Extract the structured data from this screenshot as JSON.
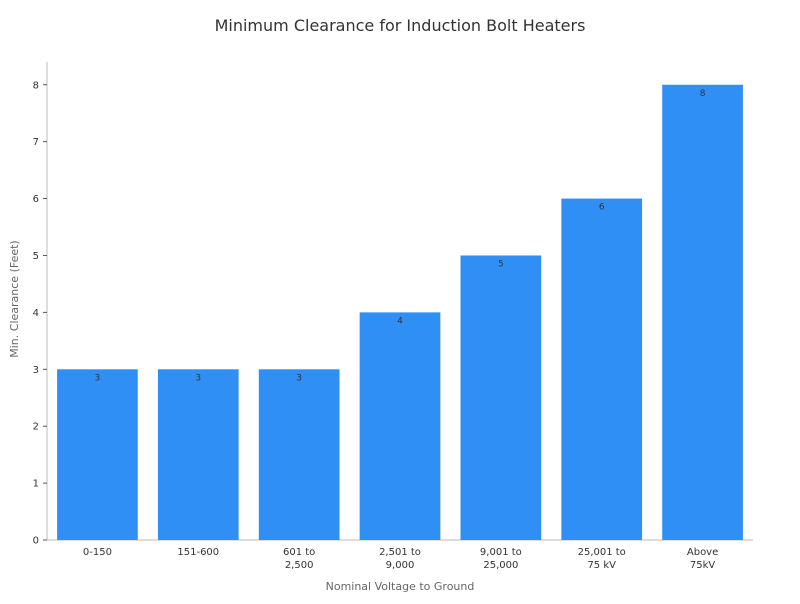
{
  "chart_data": {
    "type": "bar",
    "title": "Minimum Clearance for Induction Bolt Heaters",
    "xlabel": "Nominal Voltage to Ground",
    "ylabel": "Min. Clearance (Feet)",
    "categories": [
      [
        "0-150"
      ],
      [
        "151-600"
      ],
      [
        "601 to",
        "2,500"
      ],
      [
        "2,501 to",
        "9,000"
      ],
      [
        "9,001 to",
        "25,000"
      ],
      [
        "25,001 to",
        "75 kV"
      ],
      [
        "Above",
        "75kV"
      ]
    ],
    "values": [
      3,
      3,
      3,
      4,
      5,
      6,
      8
    ],
    "data_labels": [
      "3",
      "3",
      "3",
      "4",
      "5",
      "6",
      "8"
    ],
    "yticks": [
      0,
      1,
      2,
      3,
      4,
      5,
      6,
      7,
      8
    ],
    "ylim": [
      0,
      8.4
    ],
    "grid": false,
    "bar_color": "#2f8ff5",
    "text_color": "#333333",
    "axis_color": "#bbbbbb"
  }
}
